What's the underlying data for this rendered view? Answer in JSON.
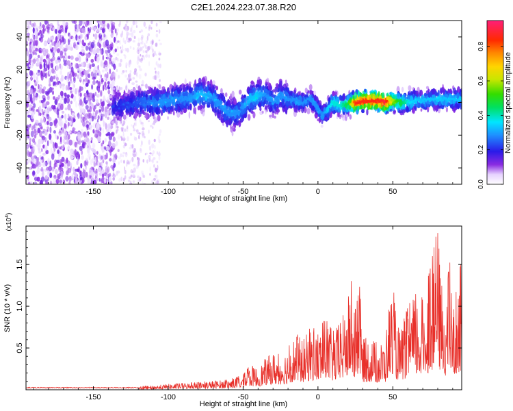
{
  "title": "C2E1.2024.223.07.38.R20",
  "chart_data": [
    {
      "type": "heatmap",
      "xlabel": "Height of straight line (km)",
      "ylabel": "Frequency (Hz)",
      "xlim": [
        -195,
        96
      ],
      "ylim": [
        -50,
        50
      ],
      "xticks": [
        -150,
        -100,
        -50,
        0,
        50
      ],
      "yticks": [
        -40,
        -20,
        0,
        20,
        40
      ],
      "colorbar": {
        "label": "Normalized spectral amplitude",
        "range": [
          0,
          0.95
        ],
        "ticks": [
          0.0,
          0.2,
          0.4,
          0.6,
          0.8
        ],
        "tick_labels": [
          "0.0",
          "0.2",
          "0.4",
          "0.6",
          "0.8"
        ]
      },
      "ridge": {
        "heights": [
          -135,
          -120,
          -105,
          -95,
          -85,
          -78,
          -70,
          -65,
          -60,
          -55,
          -50,
          -45,
          -40,
          -35,
          -30,
          -25,
          -20,
          -15,
          -10,
          -5,
          0,
          3,
          6,
          10,
          15,
          20,
          25,
          30,
          35,
          40,
          45,
          50,
          55,
          60,
          65,
          70,
          75,
          80,
          85,
          90,
          95
        ],
        "frequency_hz": [
          -3,
          0,
          0,
          2,
          3,
          5,
          3,
          -2,
          -6,
          -7,
          -3,
          2,
          4,
          5,
          0,
          4,
          2,
          1,
          0,
          2,
          -4,
          -8,
          -5,
          0,
          -2,
          -1,
          0,
          1,
          1,
          1,
          0,
          1,
          0,
          0,
          1,
          1,
          2,
          2,
          2,
          2,
          2
        ],
        "peak_amplitude": [
          0.2,
          0.25,
          0.3,
          0.3,
          0.3,
          0.35,
          0.3,
          0.3,
          0.3,
          0.3,
          0.3,
          0.35,
          0.35,
          0.3,
          0.3,
          0.3,
          0.3,
          0.3,
          0.3,
          0.3,
          0.3,
          0.3,
          0.35,
          0.4,
          0.4,
          0.5,
          0.9,
          0.9,
          0.9,
          0.9,
          0.95,
          0.6,
          0.5,
          0.4,
          0.35,
          0.35,
          0.35,
          0.35,
          0.35,
          0.35,
          0.35
        ]
      }
    },
    {
      "type": "line",
      "xlabel": "Height of straight line (km)",
      "ylabel": "SNR (10 * v/v)",
      "multiplier_label": "(x10",
      "multiplier_exp": "4",
      "multiplier_close": ")",
      "xlim": [
        -195,
        96
      ],
      "ylim": [
        0,
        1.96
      ],
      "xticks": [
        -150,
        -100,
        -50,
        0,
        50
      ],
      "yticks": [
        0.5,
        1.0,
        1.5
      ],
      "ytick_labels": [
        "0.5",
        "1.0",
        "1.5"
      ],
      "color": "#e8302a",
      "envelope": {
        "x": [
          -195,
          -150,
          -130,
          -110,
          -100,
          -90,
          -80,
          -70,
          -60,
          -50,
          -45,
          -40,
          -35,
          -30,
          -25,
          -20,
          -15,
          -10,
          -5,
          0,
          5,
          10,
          15,
          20,
          22,
          24,
          26,
          28,
          30,
          35,
          40,
          45,
          47,
          50,
          52,
          55,
          60,
          65,
          70,
          75,
          80,
          82,
          85,
          88,
          90,
          95
        ],
        "y": [
          0.02,
          0.02,
          0.03,
          0.05,
          0.07,
          0.08,
          0.09,
          0.11,
          0.12,
          0.18,
          0.3,
          0.26,
          0.38,
          0.45,
          0.42,
          0.5,
          0.68,
          0.6,
          0.75,
          0.72,
          0.85,
          0.7,
          0.8,
          1.1,
          1.35,
          0.9,
          1.05,
          1.25,
          0.6,
          0.65,
          0.55,
          0.6,
          1.0,
          1.3,
          0.9,
          0.7,
          1.0,
          1.15,
          1.1,
          1.45,
          1.96,
          1.4,
          1.1,
          1.55,
          1.0,
          1.5
        ]
      }
    }
  ]
}
